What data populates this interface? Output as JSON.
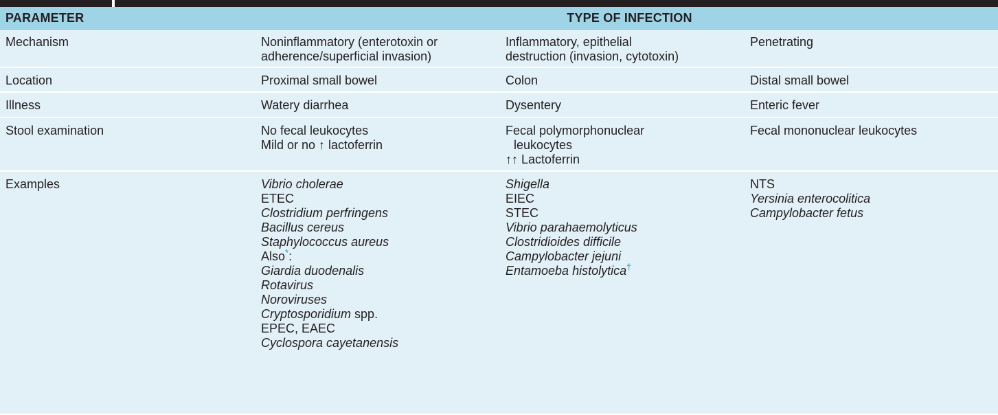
{
  "header": {
    "parameter": "PARAMETER",
    "type_of_infection": "TYPE OF INFECTION"
  },
  "rows": [
    {
      "label": "Mechanism",
      "col1": [
        "Noninflammatory (enterotoxin or",
        "adherence/superficial invasion)"
      ],
      "col2": [
        "Inflammatory, epithelial",
        "destruction (invasion, cytotoxin)"
      ],
      "col3": [
        "Penetrating"
      ]
    },
    {
      "label": "Location",
      "col1": [
        "Proximal small bowel"
      ],
      "col2": [
        "Colon"
      ],
      "col3": [
        "Distal small bowel"
      ]
    },
    {
      "label": "Illness",
      "col1": [
        "Watery diarrhea"
      ],
      "col2": [
        "Dysentery"
      ],
      "col3": [
        "Enteric fever"
      ]
    },
    {
      "label": "Stool examination",
      "col1": [
        "No fecal leukocytes",
        "Mild or no ↑ lactoferrin"
      ],
      "col2": [
        "Fecal polymorphonuclear",
        "leukocytes",
        "↑↑ Lactoferrin"
      ],
      "col3": [
        "Fecal mononuclear leukocytes"
      ]
    },
    {
      "label": "Examples",
      "col1": [
        "Vibrio cholerae",
        "ETEC",
        "Clostridium perfringens",
        "Bacillus cereus",
        "Staphylococcus aureus",
        "Also",
        "*",
        ":",
        "Giardia duodenalis",
        "Rotavirus",
        "Noroviruses",
        "Cryptosporidium",
        " spp.",
        "EPEC, EAEC",
        "Cyclospora cayetanensis"
      ],
      "col2": [
        "Shigella",
        "EIEC",
        "STEC",
        "Vibrio parahaemolyticus",
        "Clostridioides difficile",
        "Campylobacter jejuni",
        "Entamoeba histolytica",
        "†"
      ],
      "col3": [
        "NTS",
        "Yersinia enterocolitica",
        "Campylobacter fetus"
      ]
    }
  ]
}
